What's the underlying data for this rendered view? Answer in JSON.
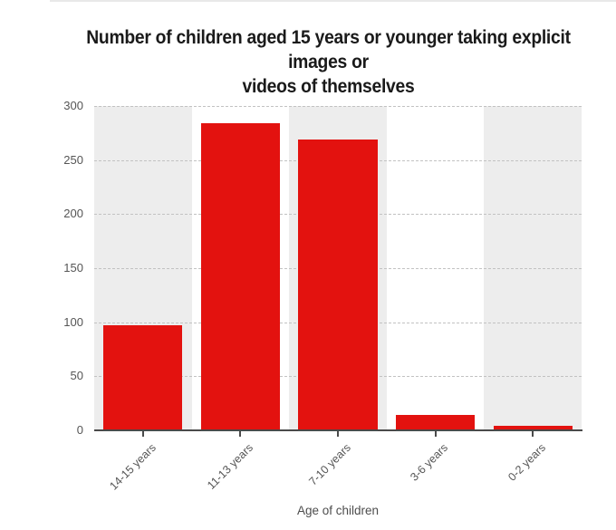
{
  "page": {
    "top_border_color": "#e8e8e8",
    "background_color": "#ffffff"
  },
  "title": {
    "line1": "Number of children aged 15 years or younger taking explicit images or",
    "line2": "videos of themselves"
  },
  "chart_data": {
    "type": "bar",
    "title": "Number of children aged 15 years or younger taking explicit images or videos of themselves",
    "categories": [
      "14-15 years",
      "11-13 years",
      "7-10 years",
      "3-6 years",
      "0-2 years"
    ],
    "values": [
      97,
      284,
      269,
      14,
      4
    ],
    "xlabel": "Age of children",
    "ylabel": "",
    "ylim": [
      0,
      300
    ],
    "yticks": [
      0,
      50,
      100,
      150,
      200,
      250,
      300
    ],
    "grid": "horizontal dashed",
    "legend": "none",
    "bar_color": "#e3120f",
    "band_color": "#ededed",
    "axis_color": "#4a4a4a",
    "label_color": "#555555",
    "banding_note": "alternating light-gray column backgrounds behind columns 1, 3 and 5"
  }
}
